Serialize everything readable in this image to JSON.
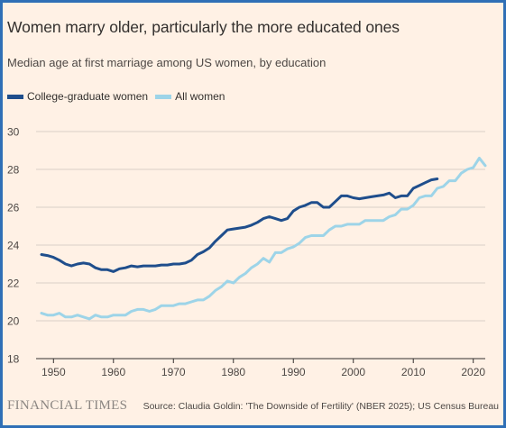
{
  "title": "Women marry older, particularly the more educated ones",
  "subtitle": "Median age at first marriage among US women, by education",
  "footer": {
    "brand": "FINANCIAL TIMES",
    "source": "Source: Claudia Goldin: 'The Downside of Fertility' (NBER 2025); US Census Bureau"
  },
  "colors": {
    "background": "#fff1e5",
    "frame": "#2f6fb6",
    "grid": "#d9cfc6",
    "axis": "#33302e"
  },
  "chart_data": {
    "type": "line",
    "xlim": [
      1948,
      2022
    ],
    "ylim": [
      18,
      30
    ],
    "x_ticks": [
      1950,
      1960,
      1970,
      1980,
      1990,
      2000,
      2010,
      2020
    ],
    "y_ticks": [
      18,
      20,
      22,
      24,
      26,
      28,
      30
    ],
    "grid": "horizontal",
    "legend_placement": "top-left",
    "series": [
      {
        "name": "College-graduate women",
        "color": "#1f4e8c",
        "x": [
          1948,
          1949,
          1950,
          1951,
          1952,
          1953,
          1954,
          1955,
          1956,
          1957,
          1958,
          1959,
          1960,
          1961,
          1962,
          1963,
          1964,
          1965,
          1966,
          1967,
          1968,
          1969,
          1970,
          1971,
          1972,
          1973,
          1974,
          1975,
          1976,
          1977,
          1978,
          1979,
          1980,
          1981,
          1982,
          1983,
          1984,
          1985,
          1986,
          1987,
          1988,
          1989,
          1990,
          1991,
          1992,
          1993,
          1994,
          1995,
          1996,
          1997,
          1998,
          1999,
          2000,
          2001,
          2002,
          2003,
          2004,
          2005,
          2006,
          2007,
          2008,
          2009,
          2010,
          2011,
          2012,
          2013,
          2014
        ],
        "values": [
          23.5,
          23.45,
          23.35,
          23.2,
          23.0,
          22.9,
          23.0,
          23.05,
          23.0,
          22.8,
          22.7,
          22.7,
          22.6,
          22.75,
          22.8,
          22.9,
          22.85,
          22.9,
          22.9,
          22.9,
          22.95,
          22.95,
          23.0,
          23.0,
          23.05,
          23.2,
          23.5,
          23.65,
          23.85,
          24.2,
          24.5,
          24.8,
          24.85,
          24.9,
          24.95,
          25.05,
          25.2,
          25.4,
          25.5,
          25.4,
          25.3,
          25.4,
          25.8,
          26.0,
          26.1,
          26.25,
          26.25,
          26.0,
          26.0,
          26.3,
          26.6,
          26.6,
          26.5,
          26.45,
          26.5,
          26.55,
          26.6,
          26.65,
          26.75,
          26.5,
          26.6,
          26.6,
          27.0,
          27.15,
          27.3,
          27.45,
          27.5
        ]
      },
      {
        "name": "All women",
        "color": "#9dd4e8",
        "x": [
          1948,
          1949,
          1950,
          1951,
          1952,
          1953,
          1954,
          1955,
          1956,
          1957,
          1958,
          1959,
          1960,
          1961,
          1962,
          1963,
          1964,
          1965,
          1966,
          1967,
          1968,
          1969,
          1970,
          1971,
          1972,
          1973,
          1974,
          1975,
          1976,
          1977,
          1978,
          1979,
          1980,
          1981,
          1982,
          1983,
          1984,
          1985,
          1986,
          1987,
          1988,
          1989,
          1990,
          1991,
          1992,
          1993,
          1994,
          1995,
          1996,
          1997,
          1998,
          1999,
          2000,
          2001,
          2002,
          2003,
          2004,
          2005,
          2006,
          2007,
          2008,
          2009,
          2010,
          2011,
          2012,
          2013,
          2014,
          2015,
          2016,
          2017,
          2018,
          2019,
          2020,
          2021,
          2022
        ],
        "values": [
          20.4,
          20.3,
          20.3,
          20.4,
          20.2,
          20.2,
          20.3,
          20.2,
          20.1,
          20.3,
          20.2,
          20.2,
          20.3,
          20.3,
          20.3,
          20.5,
          20.6,
          20.6,
          20.5,
          20.6,
          20.8,
          20.8,
          20.8,
          20.9,
          20.9,
          21.0,
          21.1,
          21.1,
          21.3,
          21.6,
          21.8,
          22.1,
          22.0,
          22.3,
          22.5,
          22.8,
          23.0,
          23.3,
          23.1,
          23.6,
          23.6,
          23.8,
          23.9,
          24.1,
          24.4,
          24.5,
          24.5,
          24.5,
          24.8,
          25.0,
          25.0,
          25.1,
          25.1,
          25.1,
          25.3,
          25.3,
          25.3,
          25.3,
          25.5,
          25.6,
          25.9,
          25.9,
          26.1,
          26.5,
          26.6,
          26.6,
          27.0,
          27.1,
          27.4,
          27.4,
          27.8,
          28.0,
          28.1,
          28.6,
          28.2
        ]
      }
    ]
  }
}
